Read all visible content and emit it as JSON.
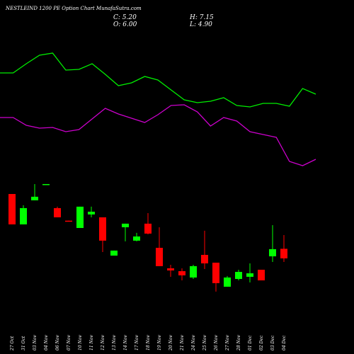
{
  "chart_data": {
    "type": "candlestick",
    "title": "NESTLEIND 1200 PE Option Chart MunafaSutra.com",
    "header": {
      "close": "C: 5.20",
      "open": "O: 6.00",
      "high": "H: 7.15",
      "low": "L: 4.90"
    },
    "categories": [
      "27 Oct",
      "31 Oct",
      "03 Nov",
      "04 Nov",
      "06 Nov",
      "07 Nov",
      "10 Nov",
      "11 Nov",
      "12 Nov",
      "13 Nov",
      "14 Nov",
      "17 Nov",
      "18 Nov",
      "19 Nov",
      "20 Nov",
      "21 Nov",
      "24 Nov",
      "25 Nov",
      "26 Nov",
      "27 Nov",
      "28 Nov",
      "01 Dec",
      "02 Dec",
      "03 Dec",
      "04 Dec"
    ],
    "open": [
      10.58,
      8.04,
      10.05,
      11.38,
      9.4,
      8.35,
      7.74,
      8.87,
      8.63,
      5.43,
      7.8,
      6.68,
      8.1,
      6.08,
      4.37,
      4.13,
      3.6,
      5.49,
      4.84,
      2.83,
      3.48,
      3.66,
      4.25,
      5.37,
      6.0
    ],
    "high": [
      10.58,
      9.64,
      11.41,
      11.41,
      9.52,
      8.35,
      9.52,
      9.52,
      8.63,
      5.85,
      8.1,
      7.33,
      8.98,
      7.8,
      4.66,
      4.37,
      4.66,
      7.51,
      4.84,
      3.72,
      4.25,
      4.78,
      4.25,
      7.98,
      7.15
    ],
    "low": [
      8.04,
      8.04,
      10.05,
      11.38,
      8.63,
      8.33,
      7.74,
      8.63,
      5.73,
      5.43,
      6.62,
      6.62,
      7.21,
      4.55,
      3.66,
      3.36,
      3.48,
      4.31,
      2.42,
      2.83,
      3.36,
      3.19,
      3.36,
      4.9,
      4.9
    ],
    "close": [
      8.04,
      9.4,
      10.35,
      11.41,
      8.63,
      8.33,
      9.52,
      9.1,
      6.68,
      5.85,
      8.1,
      7.03,
      7.27,
      4.55,
      4.19,
      3.78,
      4.55,
      4.78,
      3.13,
      3.6,
      4.07,
      3.95,
      3.36,
      5.97,
      5.2
    ],
    "up_color": "#00ff00",
    "down_color": "#ff0000",
    "ylim": [
      2,
      12
    ],
    "lines": {
      "ylim": [
        0,
        100
      ],
      "series": [
        {
          "color": "#00ee00",
          "values": [
            73.5,
            73.5,
            80,
            86,
            87.5,
            75.5,
            76,
            80,
            72.5,
            64.5,
            66.5,
            71,
            68.5,
            61.5,
            54.5,
            52.5,
            53.5,
            56,
            50.5,
            49.5,
            52,
            52,
            50,
            62.5,
            58.5
          ]
        },
        {
          "color": "#cc00cc",
          "values": [
            42,
            42,
            36.5,
            34.5,
            35,
            32,
            33.5,
            41,
            48.5,
            44.5,
            41.5,
            38.5,
            44,
            50.5,
            51,
            46,
            36,
            42,
            39.5,
            32,
            30,
            28,
            11,
            8,
            12.5
          ]
        }
      ]
    }
  }
}
